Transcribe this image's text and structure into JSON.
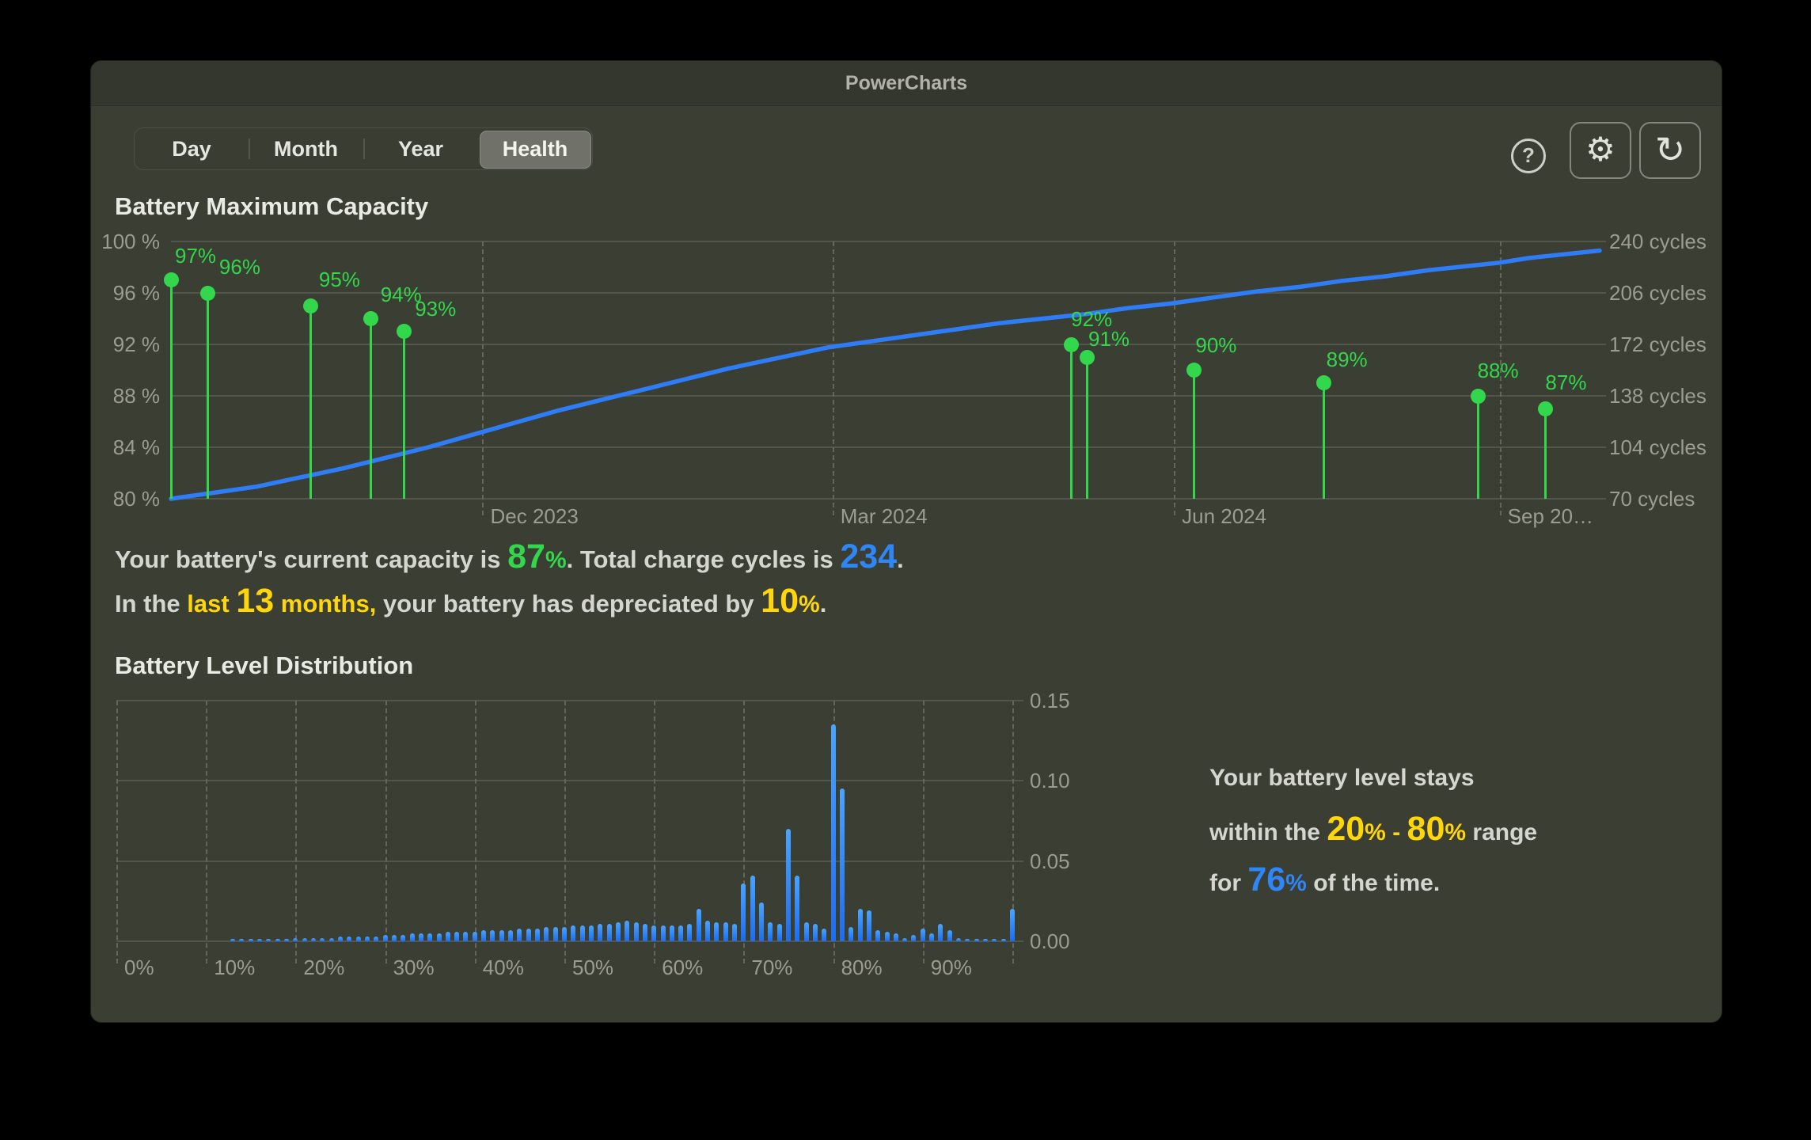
{
  "window": {
    "title": "PowerCharts"
  },
  "tabs": {
    "items": [
      "Day",
      "Month",
      "Year",
      "Health"
    ],
    "selected": "Health"
  },
  "toolbar": {
    "help_glyph": "?",
    "gear_glyph": "⚙",
    "refresh_glyph": "↻"
  },
  "colors": {
    "green": "#32d74b",
    "blue_line": "#2e7cf6",
    "blue_bar": "#2e8bf8",
    "blue_text": "#2f86f7",
    "yellow": "#ffd60a",
    "axis_text": "#9c9c93",
    "gridline": "#53564b",
    "window_bg": "#3b3e33",
    "titlebar_bg": "#34372d"
  },
  "chart_data": [
    {
      "type": "line",
      "title": "Battery Maximum Capacity",
      "y_left": {
        "min": 80,
        "max": 100,
        "tick_labels": [
          "100 %",
          "96 %",
          "92 %",
          "88 %",
          "84 %",
          "80 %"
        ]
      },
      "y_right": {
        "min": 70,
        "max": 240,
        "tick_labels": [
          "240 cycles",
          "206 cycles",
          "172 cycles",
          "138 cycles",
          "104 cycles",
          "70 cycles"
        ]
      },
      "x_ticks": [
        {
          "label": "Dec 2023",
          "f": 0.218
        },
        {
          "label": "Mar 2024",
          "f": 0.463
        },
        {
          "label": "Jun 2024",
          "f": 0.702
        },
        {
          "label": "Sep 20…",
          "f": 0.93
        }
      ],
      "grid": true,
      "series": [
        {
          "name": "charge-cycles",
          "style": "line",
          "color": "#2e7cf6",
          "points": [
            [
              0,
              70
            ],
            [
              0.03,
              74
            ],
            [
              0.06,
              78
            ],
            [
              0.09,
              84
            ],
            [
              0.12,
              90
            ],
            [
              0.15,
              97
            ],
            [
              0.18,
              104
            ],
            [
              0.21,
              112
            ],
            [
              0.24,
              120
            ],
            [
              0.27,
              128
            ],
            [
              0.3,
              135
            ],
            [
              0.33,
              142
            ],
            [
              0.36,
              149
            ],
            [
              0.39,
              156
            ],
            [
              0.42,
              162
            ],
            [
              0.46,
              170
            ],
            [
              0.49,
              174
            ],
            [
              0.52,
              178
            ],
            [
              0.55,
              182
            ],
            [
              0.58,
              186
            ],
            [
              0.61,
              189
            ],
            [
              0.64,
              192
            ],
            [
              0.67,
              196
            ],
            [
              0.7,
              199
            ],
            [
              0.73,
              203
            ],
            [
              0.76,
              207
            ],
            [
              0.79,
              210
            ],
            [
              0.82,
              214
            ],
            [
              0.85,
              217
            ],
            [
              0.88,
              221
            ],
            [
              0.91,
              224
            ],
            [
              0.93,
              226
            ],
            [
              0.95,
              229
            ],
            [
              0.97,
              231
            ],
            [
              1.0,
              234
            ]
          ]
        },
        {
          "name": "capacity-measurements",
          "style": "lollipop",
          "color": "#32d74b",
          "markers": [
            {
              "pct": 97,
              "f": 0.0,
              "label": "97%",
              "dx": 5,
              "dy": -16
            },
            {
              "pct": 96,
              "f": 0.026,
              "label": "96%",
              "dx": 14,
              "dy": -18
            },
            {
              "pct": 95,
              "f": 0.098,
              "label": "95%",
              "dx": 10,
              "dy": -18
            },
            {
              "pct": 94,
              "f": 0.14,
              "label": "94%",
              "dx": 12,
              "dy": -16
            },
            {
              "pct": 93,
              "f": 0.163,
              "label": "93%",
              "dx": 14,
              "dy": -14
            },
            {
              "pct": 92,
              "f": 0.63,
              "label": "92%",
              "dx": 0,
              "dy": -17
            },
            {
              "pct": 91,
              "f": 0.641,
              "label": "91%",
              "dx": 2,
              "dy": -8
            },
            {
              "pct": 90,
              "f": 0.716,
              "label": "90%",
              "dx": 2,
              "dy": -17
            },
            {
              "pct": 89,
              "f": 0.807,
              "label": "89%",
              "dx": 3,
              "dy": -15
            },
            {
              "pct": 88,
              "f": 0.915,
              "label": "88%",
              "dx": -1,
              "dy": -17
            },
            {
              "pct": 87,
              "f": 0.962,
              "label": "87%",
              "dx": 0,
              "dy": -18
            }
          ]
        }
      ]
    },
    {
      "type": "bar",
      "title": "Battery Level Distribution",
      "x_tick_labels": [
        "0%",
        "10%",
        "20%",
        "30%",
        "40%",
        "50%",
        "60%",
        "70%",
        "80%",
        "90%"
      ],
      "y_tick_labels": [
        "0.15",
        "0.10",
        "0.05",
        "0.00"
      ],
      "ylim": [
        0,
        0.15
      ],
      "grid": true,
      "bar_color": "#2e8bf8",
      "values_by_percent": [
        0,
        0,
        0,
        0,
        0,
        0,
        0,
        0,
        0,
        0,
        0,
        0,
        0,
        0.001,
        0.001,
        0.001,
        0.001,
        0.001,
        0.001,
        0.001,
        0.002,
        0.002,
        0.002,
        0.002,
        0.002,
        0.003,
        0.003,
        0.003,
        0.003,
        0.003,
        0.004,
        0.004,
        0.004,
        0.005,
        0.005,
        0.005,
        0.005,
        0.006,
        0.006,
        0.006,
        0.006,
        0.007,
        0.007,
        0.007,
        0.007,
        0.008,
        0.008,
        0.008,
        0.009,
        0.009,
        0.009,
        0.01,
        0.01,
        0.01,
        0.011,
        0.011,
        0.012,
        0.013,
        0.012,
        0.011,
        0.01,
        0.01,
        0.01,
        0.01,
        0.011,
        0.02,
        0.013,
        0.012,
        0.012,
        0.011,
        0.036,
        0.041,
        0.024,
        0.012,
        0.011,
        0.07,
        0.041,
        0.012,
        0.011,
        0.008,
        0.135,
        0.095,
        0.009,
        0.02,
        0.019,
        0.007,
        0.006,
        0.005,
        0.002,
        0.004,
        0.008,
        0.005,
        0.011,
        0.007,
        0.002,
        0.001,
        0.001,
        0.001,
        0.001,
        0.001,
        0.02
      ]
    }
  ],
  "texts": {
    "capacity_summary": [
      [
        {
          "t": "Your battery's current capacity is ",
          "c": "plain",
          "sz": "base"
        },
        {
          "t": "87",
          "c": "green",
          "sz": "num"
        },
        {
          "t": "%",
          "c": "green",
          "sz": "pct"
        },
        {
          "t": ". Total charge cycles is ",
          "c": "plain",
          "sz": "base"
        },
        {
          "t": "234",
          "c": "blue",
          "sz": "num"
        },
        {
          "t": ".",
          "c": "plain",
          "sz": "base"
        }
      ],
      [
        {
          "t": "In the ",
          "c": "plain",
          "sz": "base"
        },
        {
          "t": "last ",
          "c": "yellow",
          "sz": "base"
        },
        {
          "t": "13",
          "c": "yellow",
          "sz": "num"
        },
        {
          "t": " months,",
          "c": "yellow",
          "sz": "base"
        },
        {
          "t": " your battery has depreciated by ",
          "c": "plain",
          "sz": "base"
        },
        {
          "t": "10",
          "c": "yellow",
          "sz": "num"
        },
        {
          "t": "%",
          "c": "yellow",
          "sz": "pct"
        },
        {
          "t": ".",
          "c": "plain",
          "sz": "base"
        }
      ]
    ],
    "distribution_summary": [
      [
        {
          "t": "Your battery level stays",
          "c": "plain",
          "sz": "base"
        }
      ],
      [
        {
          "t": "within the ",
          "c": "plain",
          "sz": "base"
        },
        {
          "t": "20",
          "c": "yellow",
          "sz": "num"
        },
        {
          "t": "%",
          "c": "yellow",
          "sz": "pct"
        },
        {
          "t": " - ",
          "c": "yellow",
          "sz": "base"
        },
        {
          "t": "80",
          "c": "yellow",
          "sz": "num"
        },
        {
          "t": "%",
          "c": "yellow",
          "sz": "pct"
        },
        {
          "t": " range",
          "c": "plain",
          "sz": "base"
        }
      ],
      [
        {
          "t": "for ",
          "c": "plain",
          "sz": "base"
        },
        {
          "t": "76",
          "c": "blue",
          "sz": "num"
        },
        {
          "t": "%",
          "c": "blue",
          "sz": "pct"
        },
        {
          "t": " of the time.",
          "c": "plain",
          "sz": "base"
        }
      ]
    ]
  }
}
